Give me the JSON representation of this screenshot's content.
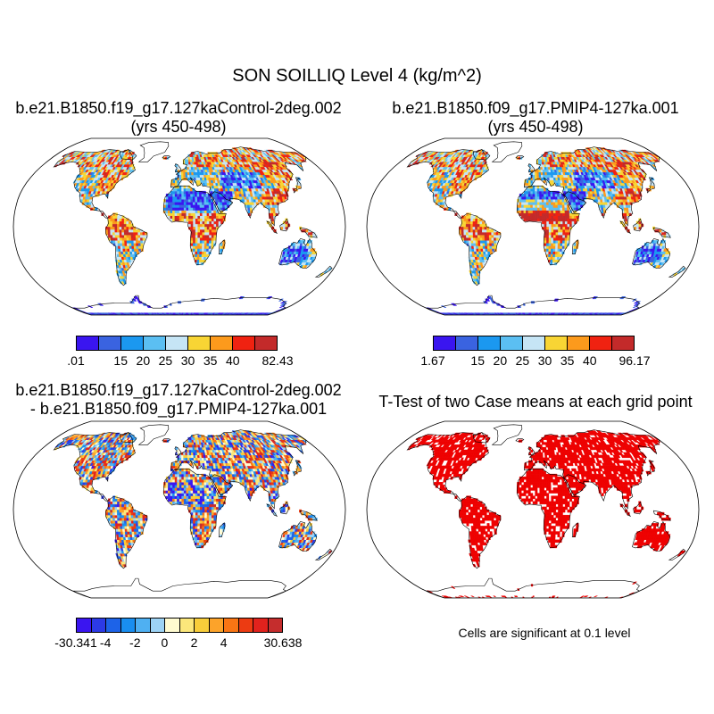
{
  "figure": {
    "title": "SON SOILLIQ Level 4 (kg/m^2)"
  },
  "panels": [
    {
      "id": "control",
      "title_line1": "b.e21.B1850.f19_g17.127kaControl-2deg.002",
      "title_line2": "(yrs 450-498)",
      "colorbar": {
        "colors": [
          "#3a15f0",
          "#3a63e0",
          "#1b98f0",
          "#5bbff2",
          "#c6e5f5",
          "#f8d534",
          "#fc9a1c",
          "#f02211",
          "#c32a2a"
        ],
        "labels": [
          ".01",
          "15",
          "20",
          "25",
          "30",
          "35",
          "40",
          "82.43"
        ]
      }
    },
    {
      "id": "pmip4",
      "title_line1": "b.e21.B1850.f09_g17.PMIP4-127ka.001",
      "title_line2": "(yrs 450-498)",
      "colorbar": {
        "colors": [
          "#3a15f0",
          "#3a63e0",
          "#1b98f0",
          "#5bbff2",
          "#c6e5f5",
          "#f8d534",
          "#fc9a1c",
          "#f02211",
          "#c32a2a"
        ],
        "labels": [
          "1.67",
          "15",
          "20",
          "25",
          "30",
          "35",
          "40",
          "96.17"
        ]
      }
    },
    {
      "id": "difference",
      "title_line1": "b.e21.B1850.f19_g17.127kaControl-2deg.002",
      "title_line2": "- b.e21.B1850.f09_g17.PMIP4-127ka.001",
      "colorbar": {
        "colors": [
          "#3a15f0",
          "#2c3ae6",
          "#1d63e8",
          "#198ef0",
          "#4fb0f2",
          "#9dd3f5",
          "#fffbd0",
          "#fbe77b",
          "#f8cd3a",
          "#fca32a",
          "#f97514",
          "#ec3b12",
          "#e1221d",
          "#c52d2d"
        ],
        "labels": [
          "-30.341",
          "-4",
          "-2",
          "0",
          "2",
          "4",
          "30.638"
        ]
      }
    },
    {
      "id": "ttest",
      "title": "T-Test of two Case means at each grid point",
      "note": "Cells are significant at 0.1 level",
      "significant_color": "#ee0000"
    }
  ]
}
